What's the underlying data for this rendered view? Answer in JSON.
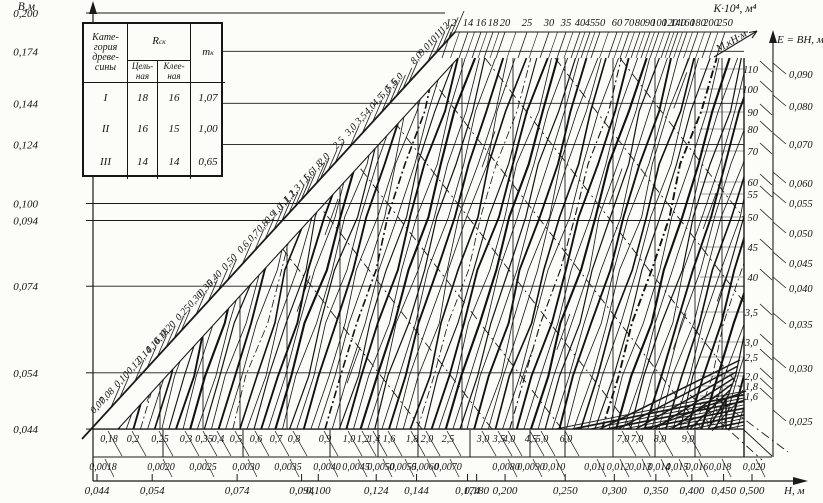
{
  "table": {
    "header": {
      "category": "Кате-\nгория\nдреве-\nсины",
      "r": "R",
      "r_sub": "ск",
      "solid": "Цель-\nная",
      "glued": "Клее-\nная",
      "m": "m",
      "m_sub": "к"
    },
    "rows": [
      [
        "I",
        "18",
        "16",
        "1,07"
      ],
      [
        "II",
        "16",
        "15",
        "1,00"
      ],
      [
        "III",
        "14",
        "14",
        "0,65"
      ]
    ]
  },
  "axes": {
    "left": {
      "label": "В,м",
      "ticks": [
        "0,200",
        "0,174",
        "0,144",
        "0,124",
        "0,100",
        "0,094",
        "0,074",
        "0,054",
        "0,044"
      ]
    },
    "top": {
      "label": "К·10⁴, м⁴",
      "ticks": [
        "12",
        "14",
        "16",
        "18",
        "20",
        "25",
        "30",
        "35",
        "40",
        "45",
        "50",
        "60",
        "70",
        "80",
        "90",
        "100",
        "120",
        "140",
        "160",
        "180",
        "200",
        "250"
      ]
    },
    "ramp": {
      "ticks": [
        "0,07",
        "0,08",
        "0,10",
        "0,12",
        "0,14",
        "0,16",
        "0,18",
        "0,20",
        "0,25",
        "0,30",
        "0,35",
        "0,40",
        "0,50",
        "0,6",
        "0,7",
        "0,8",
        "0,9",
        "1,0",
        "1,1",
        "1,2",
        "1,3",
        "1,5",
        "1,6",
        "1,8",
        "2,0",
        "2,5",
        "3,0",
        "3,5",
        "4,0",
        "4,5",
        "5,0",
        "5,5",
        "6,0",
        "8,0",
        "9,0",
        "10",
        "11",
        "12"
      ]
    },
    "moment": {
      "label": "М,кН·м",
      "ticks": [
        "110",
        "100",
        "90",
        "80",
        "70",
        "60",
        "55",
        "50",
        "45",
        "40",
        "3,5",
        "3,0",
        "2,5",
        "2,0",
        "1,8",
        "1,6"
      ]
    },
    "e": {
      "label": "E = BH, м²",
      "ticks": [
        "0,090",
        "0,080",
        "0,070",
        "0,060",
        "0,055",
        "0,050",
        "0,045",
        "0,040",
        "0,035",
        "0,030",
        "0,025"
      ]
    },
    "bottom1": {
      "ticks": [
        "0,18",
        "0,2",
        "0,25",
        "0,3",
        "0,35",
        "0,4",
        "0,5",
        "0,6",
        "0,7",
        "0,8",
        "0,9",
        "1,0",
        "1,2",
        "1,4",
        "1,6",
        "1,8",
        "2,0",
        "2,5",
        "3,0",
        "3,5",
        "4,0",
        "4,5",
        "5,0",
        "6,0",
        "7,0",
        "7,0",
        "8,0",
        "9,0"
      ]
    },
    "corner": {
      "ticks": [
        "10",
        "11",
        "12"
      ]
    },
    "bottom2": {
      "ticks": [
        "0,0018",
        "0,0020",
        "0,0025",
        "0,0030",
        "0,0035",
        "0,0040",
        "0,0045",
        "0,0050",
        "0,0055",
        "0,0060",
        "0,0070",
        "0,0080",
        "0,0090",
        "0,010",
        "0,011",
        "0,012",
        "0,013",
        "0,014",
        "0,015",
        "0,016",
        "0,018",
        "0,020"
      ]
    },
    "h": {
      "label": "Н, м",
      "ticks": [
        "0,044",
        "0,054",
        "0,074",
        "0,094",
        "0,100",
        "0,124",
        "0,144",
        "0,174",
        "0,180",
        "0,200",
        "0,250",
        "0,300",
        "0,350",
        "0,400",
        "0,450",
        "0,500"
      ]
    }
  },
  "chart_data": {
    "type": "line",
    "grid": "log-log nomogram; field of steep slanted iso-lines with dash-dot auxiliary lines",
    "axis_labels": {
      "left": "В,м",
      "top": "К·10⁴, м⁴",
      "moment": "М,кН·м",
      "e": "E = BH, м²",
      "bottom": "Н, м"
    },
    "scales": {
      "B_m": [
        0.2,
        0.174,
        0.144,
        0.124,
        0.1,
        0.094,
        0.074,
        0.054,
        0.044
      ],
      "K_top_1e4_m4": [
        12,
        14,
        16,
        18,
        20,
        25,
        30,
        35,
        40,
        45,
        50,
        60,
        70,
        80,
        90,
        100,
        120,
        140,
        160,
        180,
        200,
        250
      ],
      "K_ramp": [
        0.07,
        0.08,
        0.1,
        0.12,
        0.14,
        0.16,
        0.18,
        0.2,
        0.25,
        0.3,
        0.35,
        0.4,
        0.5,
        0.6,
        0.7,
        0.8,
        0.9,
        1.0,
        1.1,
        1.2,
        1.3,
        1.5,
        1.6,
        1.8,
        2.0,
        2.5,
        3.0,
        3.5,
        4.0,
        4.5,
        5.0,
        5.5,
        6.0,
        8.0,
        9.0,
        10,
        11,
        12
      ],
      "M_kNm": [
        110,
        100,
        90,
        80,
        70,
        60,
        55,
        50,
        45,
        40,
        3.5,
        3.0,
        2.5,
        2.0,
        1.8,
        1.6
      ],
      "E_BH_m2": [
        0.09,
        0.08,
        0.07,
        0.06,
        0.055,
        0.05,
        0.045,
        0.04,
        0.035,
        0.03,
        0.025
      ],
      "scale_row1": [
        0.18,
        0.2,
        0.25,
        0.3,
        0.35,
        0.4,
        0.5,
        0.6,
        0.7,
        0.8,
        0.9,
        1.0,
        1.2,
        1.4,
        1.6,
        1.8,
        2.0,
        2.5,
        3.0,
        3.5,
        4.0,
        4.5,
        5.0,
        6.0,
        7.0,
        7.0,
        8.0,
        9.0
      ],
      "scale_row1_corner": [
        10,
        11,
        12
      ],
      "scale_row2": [
        0.0018,
        0.002,
        0.0025,
        0.003,
        0.0035,
        0.004,
        0.0045,
        0.005,
        0.0055,
        0.006,
        0.007,
        0.008,
        0.009,
        0.01,
        0.011,
        0.012,
        0.013,
        0.014,
        0.015,
        0.016,
        0.018,
        0.02
      ],
      "H_m": [
        0.044,
        0.054,
        0.074,
        0.094,
        0.1,
        0.124,
        0.144,
        0.174,
        0.18,
        0.2,
        0.25,
        0.3,
        0.35,
        0.4,
        0.45,
        0.5
      ]
    },
    "table_rows": [
      [
        "I",
        18,
        16,
        1.07
      ],
      [
        "II",
        16,
        15,
        1.0
      ],
      [
        "III",
        14,
        14,
        0.65
      ]
    ]
  }
}
